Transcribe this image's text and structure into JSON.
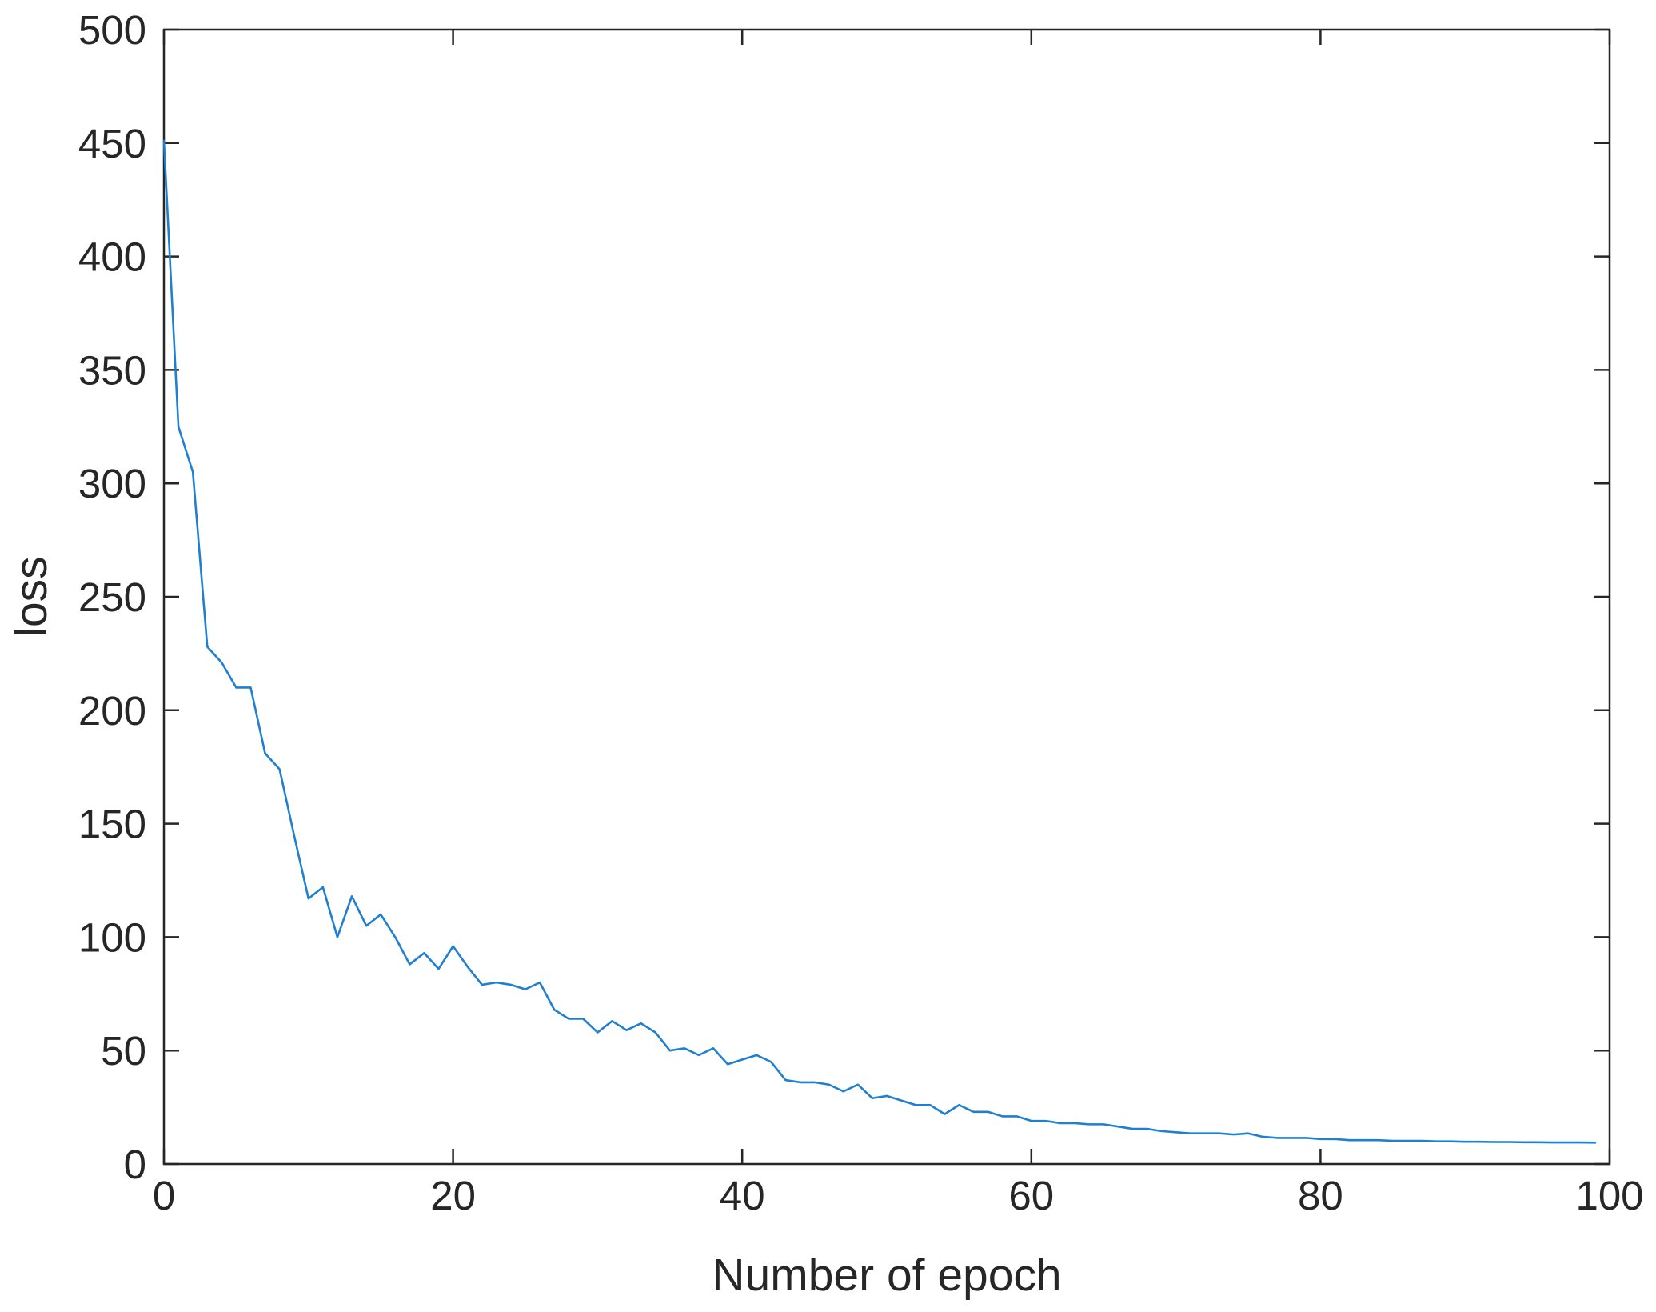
{
  "chart_data": {
    "type": "line",
    "title": "",
    "xlabel": "Number of epoch",
    "ylabel": "loss",
    "xlim": [
      0,
      100
    ],
    "ylim": [
      0,
      500
    ],
    "x_ticks": [
      0,
      20,
      40,
      60,
      80,
      100
    ],
    "y_ticks": [
      0,
      50,
      100,
      150,
      200,
      250,
      300,
      350,
      400,
      450,
      500
    ],
    "x_tick_labels": [
      "0",
      "20",
      "40",
      "60",
      "80",
      "100"
    ],
    "y_tick_labels": [
      "0",
      "50",
      "100",
      "150",
      "200",
      "250",
      "300",
      "350",
      "400",
      "450",
      "500"
    ],
    "grid": false,
    "box": true,
    "colors": {
      "line": "#1f7fd0",
      "axis": "#262626"
    },
    "series": [
      {
        "x": [
          0,
          1,
          2,
          3,
          4,
          5,
          6,
          7,
          8,
          9,
          10,
          11,
          12,
          13,
          14,
          15,
          16,
          17,
          18,
          19,
          20,
          21,
          22,
          23,
          24,
          25,
          26,
          27,
          28,
          29,
          30,
          31,
          32,
          33,
          34,
          35,
          36,
          37,
          38,
          39,
          40,
          41,
          42,
          43,
          44,
          45,
          46,
          47,
          48,
          49,
          50,
          51,
          52,
          53,
          54,
          55,
          56,
          57,
          58,
          59,
          60,
          61,
          62,
          63,
          64,
          65,
          66,
          67,
          68,
          69,
          70,
          71,
          72,
          73,
          74,
          75,
          76,
          77,
          78,
          79,
          80,
          81,
          82,
          83,
          84,
          85,
          86,
          87,
          88,
          89,
          90,
          91,
          92,
          93,
          94,
          95,
          96,
          97,
          98,
          99
        ],
        "y": [
          451,
          325,
          305,
          228,
          221,
          210,
          210,
          181,
          174,
          145,
          117,
          122,
          100,
          118,
          105,
          110,
          100,
          88,
          93,
          86,
          96,
          87,
          79,
          80,
          79,
          77,
          80,
          68,
          64,
          64,
          58,
          63,
          59,
          62,
          58,
          50,
          51,
          48,
          51,
          44,
          46,
          48,
          45,
          37,
          36,
          36,
          35,
          32,
          35,
          29,
          30,
          28,
          26,
          26,
          22,
          26,
          23,
          23,
          21,
          21,
          19,
          19,
          18,
          18,
          17.5,
          17.5,
          16.5,
          15.5,
          15.5,
          14.5,
          14,
          13.5,
          13.5,
          13.5,
          13,
          13.5,
          12,
          11.5,
          11.5,
          11.5,
          11,
          11,
          10.5,
          10.5,
          10.5,
          10.2,
          10.2,
          10.2,
          10,
          10,
          9.8,
          9.8,
          9.7,
          9.7,
          9.6,
          9.6,
          9.5,
          9.5,
          9.5,
          9.4
        ]
      }
    ]
  }
}
